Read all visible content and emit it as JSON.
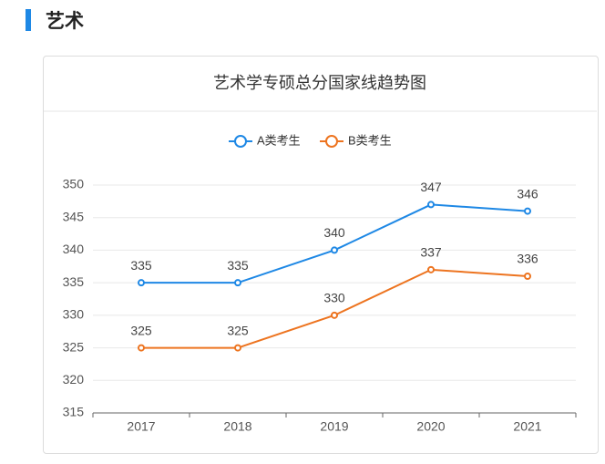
{
  "header": {
    "title": "艺术"
  },
  "chart_data": {
    "type": "line",
    "title": "艺术学专硕总分国家线趋势图",
    "categories": [
      "2017",
      "2018",
      "2019",
      "2020",
      "2021"
    ],
    "series": [
      {
        "name": "A类考生",
        "color": "#1e88e5",
        "values": [
          335,
          335,
          340,
          347,
          346
        ]
      },
      {
        "name": "B类考生",
        "color": "#ed7420",
        "values": [
          325,
          325,
          330,
          337,
          336
        ]
      }
    ],
    "ylim": [
      315,
      350
    ],
    "yticks": [
      315,
      320,
      325,
      330,
      335,
      340,
      345,
      350
    ],
    "grid": true,
    "legend": "top"
  }
}
